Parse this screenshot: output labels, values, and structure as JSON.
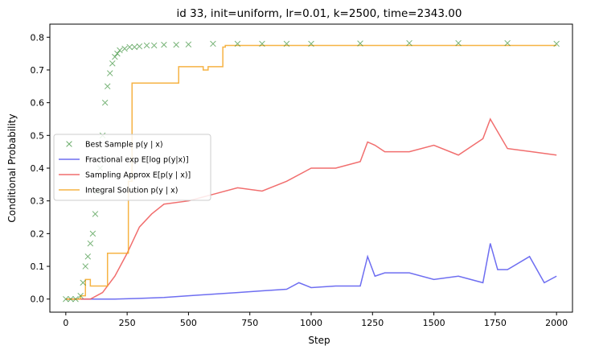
{
  "chart_data": {
    "type": "line",
    "title": "id 33, init=uniform, lr=0.01, k=2500, time=2343.00",
    "xlabel": "Step",
    "ylabel": "Conditional Probability",
    "xlim": [
      -65,
      2065
    ],
    "ylim": [
      -0.04,
      0.84
    ],
    "xticks": [
      0,
      250,
      500,
      750,
      1000,
      1250,
      1500,
      1750,
      2000
    ],
    "yticks": [
      0.0,
      0.1,
      0.2,
      0.3,
      0.4,
      0.5,
      0.6,
      0.7,
      0.8
    ],
    "xtick_labels": [
      "0",
      "250",
      "500",
      "750",
      "1000",
      "1250",
      "1500",
      "1750",
      "2000"
    ],
    "ytick_labels": [
      "0.0",
      "0.1",
      "0.2",
      "0.3",
      "0.4",
      "0.5",
      "0.6",
      "0.7",
      "0.8"
    ],
    "grid": false,
    "legend_position": "center-left",
    "series": [
      {
        "name": "Best Sample p(y | x)",
        "legend_label": "Best Sample p(y | x)",
        "style": "marker-x",
        "color": "#2e8b2e",
        "x": [
          0,
          20,
          40,
          60,
          70,
          80,
          90,
          100,
          110,
          120,
          130,
          140,
          150,
          160,
          170,
          180,
          190,
          200,
          210,
          220,
          240,
          260,
          280,
          300,
          330,
          360,
          400,
          450,
          500,
          600,
          700,
          800,
          900,
          1000,
          1200,
          1400,
          1600,
          1800,
          2000
        ],
        "y": [
          0.0,
          0.0,
          0.0,
          0.01,
          0.05,
          0.1,
          0.13,
          0.17,
          0.2,
          0.26,
          0.33,
          0.4,
          0.5,
          0.6,
          0.65,
          0.69,
          0.72,
          0.74,
          0.75,
          0.76,
          0.765,
          0.77,
          0.77,
          0.772,
          0.775,
          0.775,
          0.777,
          0.777,
          0.778,
          0.78,
          0.78,
          0.78,
          0.78,
          0.78,
          0.781,
          0.782,
          0.782,
          0.782,
          0.78
        ]
      },
      {
        "name": "Fractional exp E[log p(y|x)]",
        "legend_label": "Fractional exp E[log p(y|x)]",
        "style": "line",
        "color": "#5555ee",
        "x": [
          0,
          100,
          200,
          300,
          400,
          500,
          600,
          700,
          800,
          900,
          950,
          1000,
          1100,
          1200,
          1230,
          1260,
          1300,
          1400,
          1500,
          1600,
          1700,
          1730,
          1760,
          1800,
          1890,
          1950,
          2000
        ],
        "y": [
          0.0,
          0.0,
          0.0,
          0.002,
          0.005,
          0.01,
          0.015,
          0.02,
          0.025,
          0.03,
          0.05,
          0.035,
          0.04,
          0.04,
          0.13,
          0.07,
          0.08,
          0.08,
          0.06,
          0.07,
          0.05,
          0.17,
          0.09,
          0.09,
          0.13,
          0.05,
          0.07
        ]
      },
      {
        "name": "Sampling Approx E[p(y | x)]",
        "legend_label": "Sampling Approx E[p(y | x)]",
        "style": "line",
        "color": "#ef5555",
        "x": [
          0,
          50,
          100,
          150,
          200,
          250,
          300,
          350,
          400,
          500,
          600,
          700,
          800,
          900,
          1000,
          1100,
          1200,
          1230,
          1260,
          1300,
          1400,
          1500,
          1600,
          1700,
          1730,
          1800,
          1900,
          2000
        ],
        "y": [
          0.0,
          0.0,
          0.0,
          0.02,
          0.07,
          0.14,
          0.22,
          0.26,
          0.29,
          0.3,
          0.32,
          0.34,
          0.33,
          0.36,
          0.4,
          0.4,
          0.42,
          0.48,
          0.47,
          0.45,
          0.45,
          0.47,
          0.44,
          0.49,
          0.55,
          0.46,
          0.45,
          0.44
        ]
      },
      {
        "name": "Integral Solution p(y | x)",
        "legend_label": "Integral Solution p(y | x)",
        "style": "step",
        "color": "#f5a623",
        "x": [
          0,
          60,
          80,
          100,
          150,
          170,
          185,
          220,
          255,
          270,
          300,
          380,
          460,
          540,
          560,
          580,
          620,
          640,
          650,
          2000
        ],
        "y": [
          0.0,
          0.01,
          0.06,
          0.04,
          0.04,
          0.14,
          0.14,
          0.14,
          0.36,
          0.66,
          0.66,
          0.66,
          0.71,
          0.71,
          0.7,
          0.71,
          0.71,
          0.77,
          0.775,
          0.775
        ]
      }
    ]
  }
}
